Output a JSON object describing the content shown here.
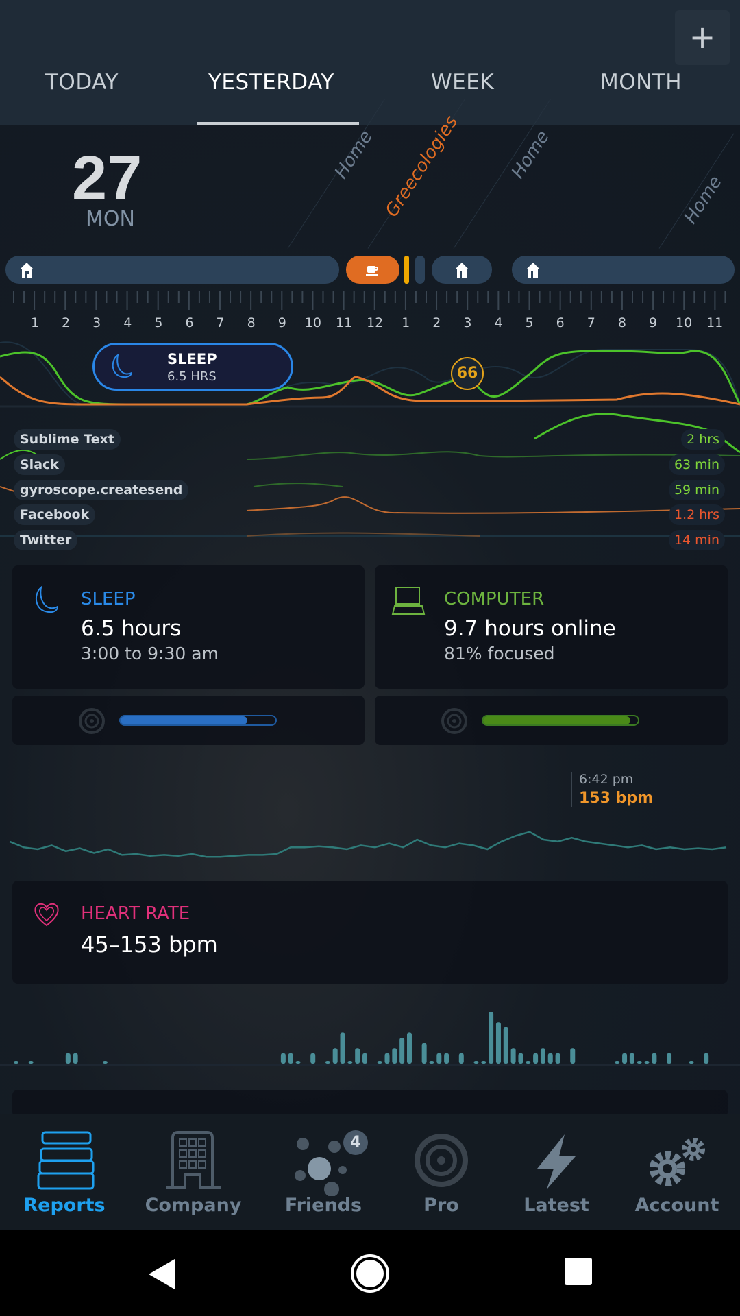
{
  "tabs": [
    {
      "label": "TODAY"
    },
    {
      "label": "YESTERDAY"
    },
    {
      "label": "WEEK"
    },
    {
      "label": "MONTH"
    }
  ],
  "add_label": "+",
  "date": {
    "day": "27",
    "weekday": "MON"
  },
  "places": [
    "Home",
    "Greecologies",
    "Home",
    "Home"
  ],
  "hours": [
    "1",
    "2",
    "3",
    "4",
    "5",
    "6",
    "7",
    "8",
    "9",
    "10",
    "11",
    "12",
    "1",
    "2",
    "3",
    "4",
    "5",
    "6",
    "7",
    "8",
    "9",
    "10",
    "11"
  ],
  "sleep_pill": {
    "title": "SLEEP",
    "value": "6.5 HRS"
  },
  "score": "66",
  "apps": [
    {
      "name": "Sublime Text",
      "value": "2 hrs",
      "color": "#7fd43a"
    },
    {
      "name": "Slack",
      "value": "63 min",
      "color": "#7fd43a"
    },
    {
      "name": "gyroscope.createsend",
      "value": "59 min",
      "color": "#7fd43a"
    },
    {
      "name": "Facebook",
      "value": "1.2 hrs",
      "color": "#e8562e"
    },
    {
      "name": "Twitter",
      "value": "14 min",
      "color": "#e8562e"
    }
  ],
  "sleep_card": {
    "title": "SLEEP",
    "main": "6.5 hours",
    "sub": "3:00 to 9:30 am",
    "progress": 0.82,
    "color": "#2a8ae8"
  },
  "computer_card": {
    "title": "COMPUTER",
    "main": "9.7 hours online",
    "sub": "81% focused",
    "progress": 0.95,
    "color": "#6db33f"
  },
  "heart_tooltip": {
    "time": "6:42 pm",
    "value": "153 bpm"
  },
  "heart_series": [
    78,
    72,
    70,
    74,
    68,
    71,
    66,
    70,
    64,
    65,
    63,
    64,
    63,
    65,
    62,
    62,
    63,
    64,
    64,
    65,
    72,
    72,
    73,
    72,
    70,
    74,
    72,
    76,
    72,
    80,
    74,
    72,
    76,
    74,
    70,
    78,
    84,
    88,
    80,
    78,
    82,
    78,
    76,
    74,
    72,
    74,
    70,
    72,
    70,
    71,
    70,
    72
  ],
  "heart_card": {
    "title": "HEART RATE",
    "main": "45–153 bpm",
    "color": "#e0307a"
  },
  "activity_bars": [
    1,
    0,
    1,
    0,
    0,
    0,
    0,
    2,
    2,
    0,
    0,
    0,
    1,
    0,
    0,
    0,
    0,
    0,
    0,
    0,
    0,
    0,
    0,
    0,
    0,
    0,
    0,
    0,
    0,
    0,
    0,
    0,
    0,
    0,
    0,
    0,
    2,
    2,
    1,
    0,
    2,
    0,
    1,
    3,
    6,
    1,
    3,
    2,
    0,
    1,
    2,
    3,
    5,
    6,
    0,
    4,
    1,
    2,
    2,
    0,
    2,
    0,
    1,
    1,
    10,
    8,
    7,
    3,
    2,
    1,
    2,
    3,
    2,
    2,
    0,
    3,
    0,
    0,
    0,
    0,
    0,
    1,
    2,
    2,
    1,
    1,
    2,
    0,
    2,
    0,
    0,
    1,
    0,
    2,
    0,
    0
  ],
  "nav": [
    {
      "label": "Reports"
    },
    {
      "label": "Company"
    },
    {
      "label": "Friends",
      "badge": "4"
    },
    {
      "label": "Pro"
    },
    {
      "label": "Latest"
    },
    {
      "label": "Account"
    }
  ],
  "colors": {
    "accent": "#1ea0ef",
    "nav_inactive": "#6f8192",
    "orange": "#e06c22"
  }
}
